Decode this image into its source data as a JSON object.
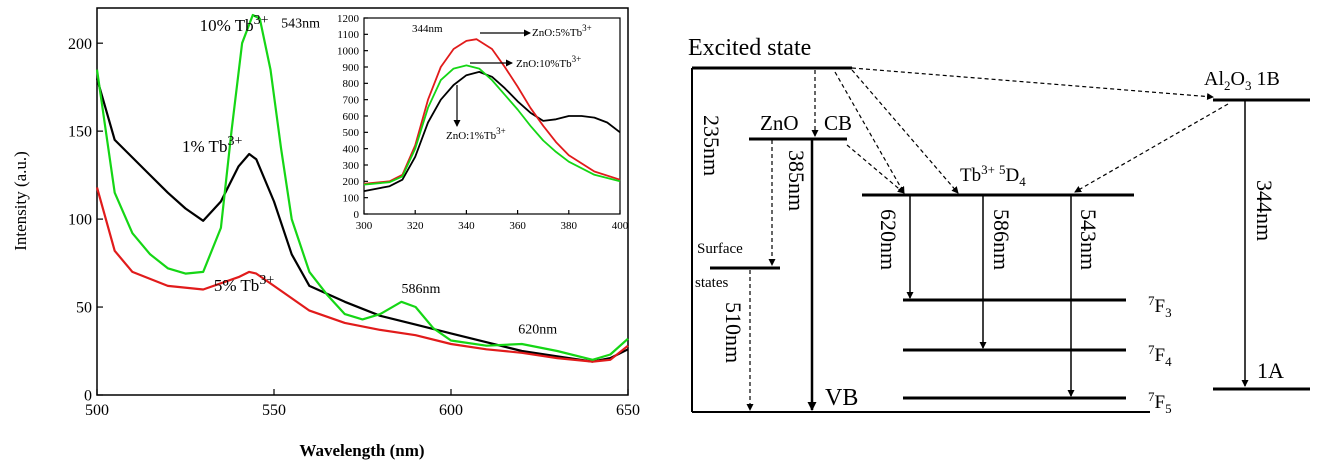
{
  "chart_data": [
    {
      "type": "line",
      "xlabel": "Wavelength (nm)",
      "ylabel": "Intensity (a.u.)",
      "xlim": [
        500,
        650
      ],
      "ylim": [
        0,
        220
      ],
      "x_ticks": [
        "500",
        "550",
        "600",
        "650"
      ],
      "y_ticks": [
        "0",
        "50",
        "100",
        "150",
        "200"
      ],
      "grid": false,
      "series": [
        {
          "name": "1% Tb3+",
          "color": "#000000",
          "x": [
            500,
            505,
            510,
            515,
            520,
            525,
            530,
            535,
            540,
            543,
            545,
            550,
            555,
            560,
            570,
            580,
            590,
            600,
            610,
            620,
            630,
            640,
            645,
            650
          ],
          "y": [
            180,
            145,
            135,
            125,
            115,
            106,
            99,
            110,
            130,
            137,
            134,
            110,
            80,
            62,
            53,
            45,
            40,
            35,
            30,
            25,
            22,
            19,
            21,
            26
          ]
        },
        {
          "name": "5% Tb3+",
          "color": "#e11b1b",
          "x": [
            500,
            505,
            510,
            520,
            530,
            540,
            543,
            545,
            550,
            560,
            570,
            580,
            590,
            600,
            610,
            620,
            630,
            640,
            645,
            650
          ],
          "y": [
            118,
            82,
            70,
            62,
            60,
            67,
            70,
            69,
            62,
            48,
            41,
            37,
            34,
            29,
            26,
            24,
            21,
            19,
            20,
            28
          ]
        },
        {
          "name": "10% Tb3+",
          "color": "#15d615",
          "x": [
            500,
            505,
            510,
            515,
            520,
            525,
            530,
            535,
            538,
            541,
            544,
            546,
            549,
            552,
            555,
            560,
            565,
            570,
            575,
            580,
            586,
            590,
            595,
            600,
            610,
            620,
            630,
            640,
            645,
            650
          ],
          "y": [
            185,
            115,
            92,
            80,
            72,
            69,
            70,
            95,
            150,
            200,
            216,
            214,
            185,
            140,
            100,
            70,
            57,
            46,
            43,
            46,
            53,
            50,
            38,
            31,
            28,
            29,
            25,
            20,
            23,
            32
          ]
        }
      ],
      "annotations": [
        {
          "text": "10% Tb",
          "sup": "3+",
          "x": 529,
          "y": 207
        },
        {
          "text": "543nm",
          "x": 552,
          "y": 209
        },
        {
          "text": "1% Tb",
          "sup": "3+",
          "x": 524,
          "y": 138
        },
        {
          "text": "5% Tb",
          "sup": "3+",
          "x": 533,
          "y": 59
        },
        {
          "text": "586nm",
          "x": 586,
          "y": 58
        },
        {
          "text": "620nm",
          "x": 619,
          "y": 35
        }
      ]
    },
    {
      "type": "line",
      "role": "inset",
      "xlim": [
        300,
        400
      ],
      "ylim": [
        0,
        1200
      ],
      "x_ticks": [
        "300",
        "320",
        "340",
        "360",
        "380",
        "400"
      ],
      "y_ticks": [
        "0",
        "100",
        "200",
        "300",
        "400",
        "500",
        "600",
        "700",
        "800",
        "900",
        "1000",
        "1100",
        "1200"
      ],
      "series": [
        {
          "name": "ZnO:1%Tb3+",
          "color": "#000000",
          "x": [
            300,
            310,
            315,
            320,
            325,
            330,
            335,
            340,
            345,
            350,
            355,
            360,
            365,
            370,
            375,
            380,
            385,
            390,
            395,
            400
          ],
          "y": [
            140,
            170,
            210,
            350,
            560,
            700,
            790,
            850,
            870,
            840,
            770,
            690,
            620,
            570,
            580,
            600,
            600,
            590,
            560,
            500
          ]
        },
        {
          "name": "ZnO:5%Tb3+",
          "color": "#e11b1b",
          "x": [
            300,
            310,
            315,
            320,
            325,
            330,
            335,
            340,
            344,
            350,
            355,
            360,
            365,
            370,
            375,
            380,
            390,
            400
          ],
          "y": [
            185,
            200,
            240,
            420,
            700,
            900,
            1010,
            1060,
            1070,
            1010,
            900,
            780,
            650,
            540,
            440,
            360,
            260,
            210
          ]
        },
        {
          "name": "ZnO:10%Tb3+",
          "color": "#15d615",
          "x": [
            300,
            310,
            315,
            320,
            325,
            330,
            335,
            340,
            345,
            350,
            355,
            360,
            365,
            370,
            375,
            380,
            390,
            400
          ],
          "y": [
            180,
            195,
            230,
            400,
            650,
            820,
            890,
            910,
            890,
            820,
            730,
            640,
            540,
            450,
            380,
            320,
            240,
            200
          ]
        }
      ],
      "annotations": [
        {
          "text": "344nm"
        },
        {
          "text": "ZnO:5%Tb",
          "sup": "3+"
        },
        {
          "text": "ZnO:10%Tb",
          "sup": "3+"
        },
        {
          "text": "ZnO:1%Tb",
          "sup": "3+"
        }
      ]
    }
  ],
  "diagram": {
    "excited_state": "Excited state",
    "zno": "ZnO",
    "cb": "CB",
    "vb": "VB",
    "surface_states": "Surface",
    "surface_states_2": "states",
    "al2o3_a": "Al",
    "al2o3_b": "2",
    "al2o3_c": "O",
    "al2o3_d": "3",
    "al2o3_e": " 1B",
    "level_1a": "1A",
    "tb_level_a": "Tb",
    "tb_level_b": "3+",
    "tb_level_c": "5",
    "tb_level_d": "D",
    "tb_level_e": "4",
    "f3_a": "7",
    "f3_b": "F",
    "f3_c": "3",
    "f4_a": "7",
    "f4_b": "F",
    "f4_c": "4",
    "f5_a": "7",
    "f5_b": "F",
    "f5_c": "5",
    "t_235": "235nm",
    "t_385": "385nm",
    "t_510": "510nm",
    "t_620": "620nm",
    "t_586": "586nm",
    "t_543": "543nm",
    "t_344": "344nm"
  }
}
